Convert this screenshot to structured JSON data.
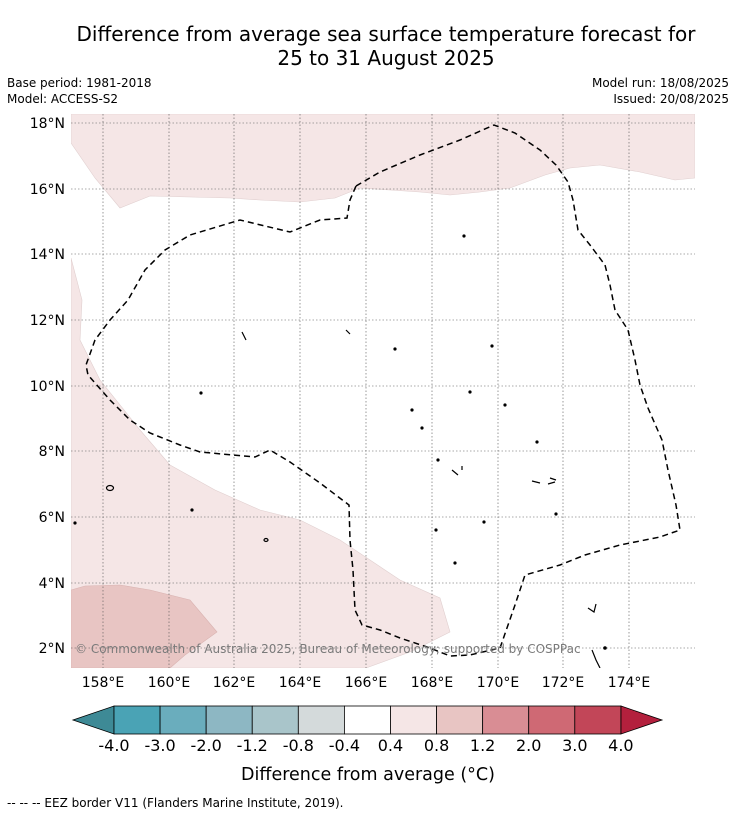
{
  "title_line1": "Difference from average sea surface temperature forecast for",
  "title_line2": "25 to 31 August 2025",
  "left_info": [
    "Base period: 1981-2018",
    "Model: ACCESS-S2"
  ],
  "right_info": [
    "Model run: 18/08/2025",
    "Issued: 20/08/2025"
  ],
  "map": {
    "lon_ticks": [
      "158°E",
      "160°E",
      "162°E",
      "164°E",
      "166°E",
      "168°E",
      "170°E",
      "172°E",
      "174°E"
    ],
    "lat_ticks": [
      "18°N",
      "16°N",
      "14°N",
      "12°N",
      "10°N",
      "8°N",
      "6°N",
      "4°N",
      "2°N"
    ],
    "lon_range": [
      157.0,
      176.0
    ],
    "lat_range": [
      1.4,
      18.3
    ],
    "grid": true,
    "copyright": "© Commonwealth of Australia 2025, Bureau of Meteorology; supported by COSPPac"
  },
  "colorbar": {
    "labels": [
      "-4.0",
      "-3.0",
      "-2.0",
      "-1.2",
      "-0.8",
      "-0.4",
      "0.4",
      "0.8",
      "1.2",
      "2.0",
      "3.0",
      "4.0"
    ],
    "colors": [
      "#3e8a96",
      "#4aa3b5",
      "#6aadbd",
      "#8db7c3",
      "#a9c5ca",
      "#d4dadb",
      "#ffffff",
      "#f5e6e6",
      "#e8c5c3",
      "#d98d94",
      "#cf6974",
      "#c24658",
      "#b3203d"
    ],
    "label": "Difference from average (°C)"
  },
  "footer": "-- -- -- EEZ border V11 (Flanders Marine Institute, 2019)."
}
